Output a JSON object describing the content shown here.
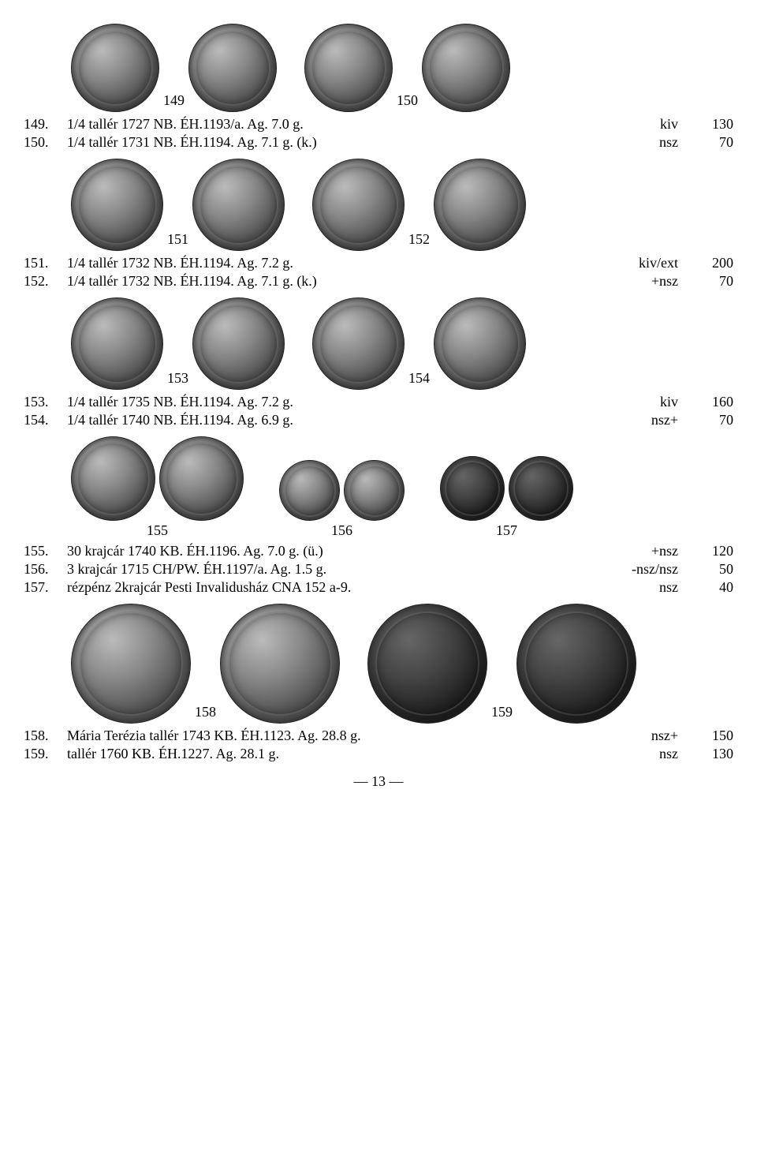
{
  "page_number": "— 13 —",
  "sections": [
    {
      "figures": [
        {
          "label": "149",
          "coins": [
            {
              "d": 110
            },
            {
              "d": 110
            }
          ],
          "label_between": true
        },
        {
          "label": "150",
          "coins": [
            {
              "d": 110
            },
            {
              "d": 110
            }
          ],
          "label_between": true
        }
      ],
      "entries": [
        {
          "lot": "149.",
          "desc": "1/4 tallér 1727 NB. ÉH.1193/a. Ag. 7.0 g.",
          "grade": "kiv",
          "price": "130"
        },
        {
          "lot": "150.",
          "desc": "1/4 tallér 1731 NB. ÉH.1194. Ag. 7.1 g. (k.)",
          "grade": "nsz",
          "price": "70"
        }
      ]
    },
    {
      "figures": [
        {
          "label": "151",
          "coins": [
            {
              "d": 115
            },
            {
              "d": 115
            }
          ],
          "label_between": true
        },
        {
          "label": "152",
          "coins": [
            {
              "d": 115
            },
            {
              "d": 115
            }
          ],
          "label_between": true
        }
      ],
      "entries": [
        {
          "lot": "151.",
          "desc": "1/4 tallér 1732 NB. ÉH.1194. Ag. 7.2 g.",
          "grade": "kiv/ext",
          "price": "200"
        },
        {
          "lot": "152.",
          "desc": "1/4 tallér 1732 NB. ÉH.1194. Ag. 7.1 g. (k.)",
          "grade": "+nsz",
          "price": "70"
        }
      ]
    },
    {
      "figures": [
        {
          "label": "153",
          "coins": [
            {
              "d": 115
            },
            {
              "d": 115
            }
          ],
          "label_between": true
        },
        {
          "label": "154",
          "coins": [
            {
              "d": 115
            },
            {
              "d": 115
            }
          ],
          "label_between": true
        }
      ],
      "entries": [
        {
          "lot": "153.",
          "desc": "1/4 tallér 1735 NB. ÉH.1194. Ag. 7.2 g.",
          "grade": "kiv",
          "price": "160"
        },
        {
          "lot": "154.",
          "desc": "1/4 tallér 1740 NB. ÉH.1194. Ag. 6.9 g.",
          "grade": "nsz+",
          "price": "70"
        }
      ]
    },
    {
      "figures": [
        {
          "label": "155",
          "coins": [
            {
              "d": 105
            },
            {
              "d": 105
            }
          ],
          "label_below": true
        },
        {
          "label": "156",
          "coins": [
            {
              "d": 75
            },
            {
              "d": 75
            }
          ],
          "label_below": true
        },
        {
          "label": "157",
          "coins": [
            {
              "d": 80,
              "dark": true
            },
            {
              "d": 80,
              "dark": true
            }
          ],
          "label_below": true
        }
      ],
      "entries": [
        {
          "lot": "155.",
          "desc": "30 krajcár 1740 KB. ÉH.1196. Ag. 7.0 g. (ü.)",
          "grade": "+nsz",
          "price": "120"
        },
        {
          "lot": "156.",
          "desc": "3 krajcár 1715 CH/PW. ÉH.1197/a. Ag. 1.5 g.",
          "grade": "-nsz/nsz",
          "price": "50"
        },
        {
          "lot": "157.",
          "desc": "rézpénz 2krajcár Pesti Invalidusház CNA 152 a-9.",
          "grade": "nsz",
          "price": "40"
        }
      ]
    },
    {
      "figures": [
        {
          "label": "158",
          "coins": [
            {
              "d": 150
            },
            {
              "d": 150
            }
          ],
          "label_between": true
        },
        {
          "label": "159",
          "coins": [
            {
              "d": 150,
              "dark": true
            },
            {
              "d": 150,
              "dark": true
            }
          ],
          "label_between": true
        }
      ],
      "entries": [
        {
          "lot": "158.",
          "desc": "Mária Terézia tallér 1743 KB. ÉH.1123. Ag. 28.8 g.",
          "grade": "nsz+",
          "price": "150"
        },
        {
          "lot": "159.",
          "desc": "tallér 1760 KB. ÉH.1227. Ag. 28.1 g.",
          "grade": "nsz",
          "price": "130"
        }
      ]
    }
  ]
}
